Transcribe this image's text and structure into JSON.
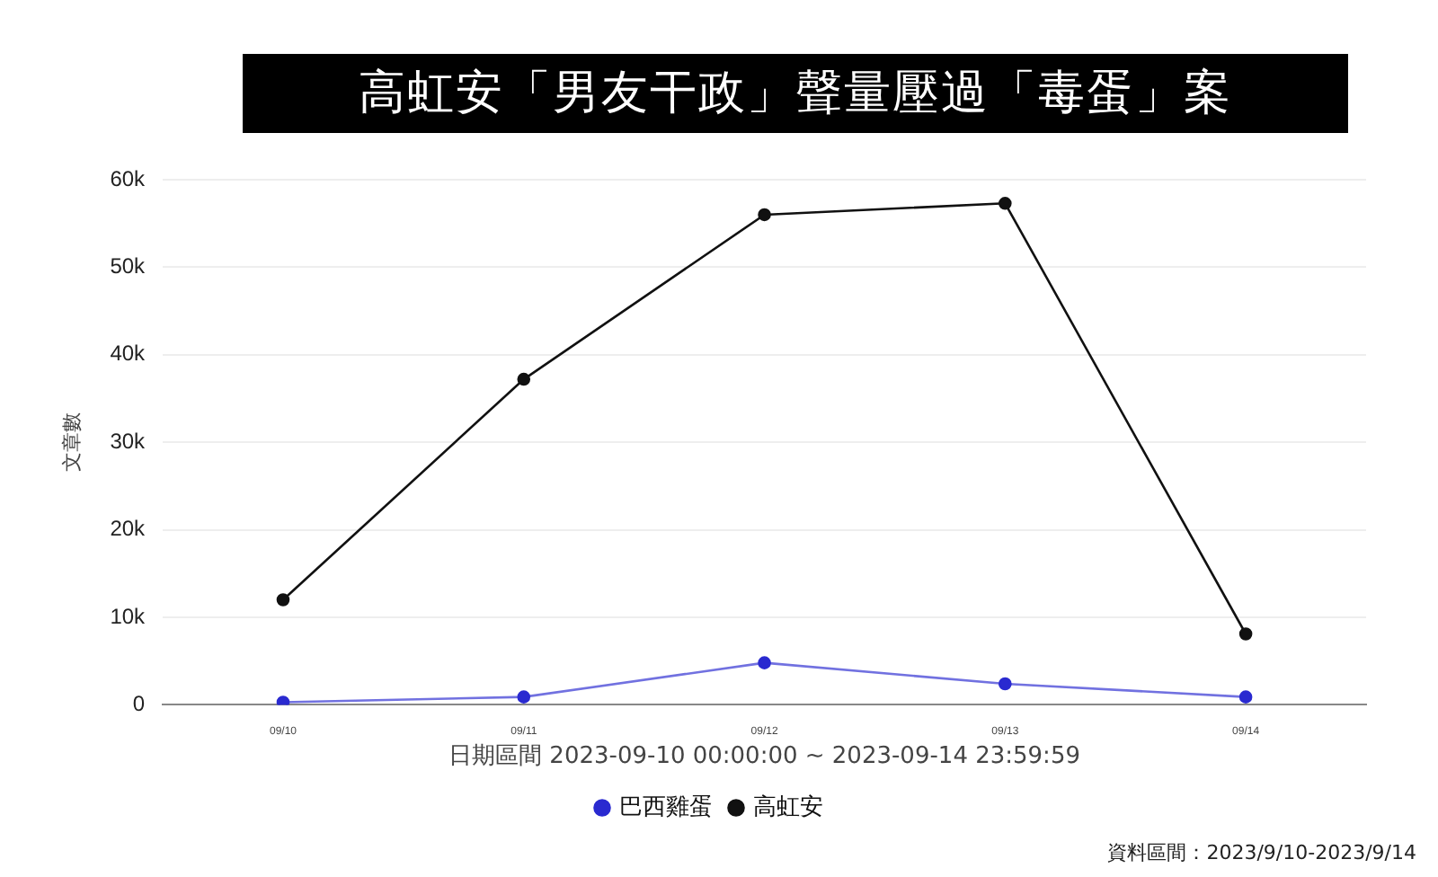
{
  "chart_data": {
    "type": "line",
    "title": "高虹安「男友干政」聲量壓過「毒蛋」案",
    "xlabel": "日期區間 2023-09-10 00:00:00 ~ 2023-09-14 23:59:59",
    "ylabel": "文章數",
    "categories": [
      "09/10",
      "09/11",
      "09/12",
      "09/13",
      "09/14"
    ],
    "series": [
      {
        "name": "巴西雞蛋",
        "color": "#2a2ad0",
        "values": [
          300,
          900,
          4800,
          2400,
          900
        ]
      },
      {
        "name": "高虹安",
        "color": "#111111",
        "values": [
          12000,
          37200,
          56000,
          57300,
          8100
        ]
      }
    ],
    "ylim": [
      0,
      60000
    ],
    "yticks": [
      0,
      {
        "value": 10000,
        "label": "10k"
      },
      {
        "value": 20000,
        "label": "20k"
      },
      {
        "value": 30000,
        "label": "30k"
      },
      {
        "value": 40000,
        "label": "40k"
      },
      {
        "value": 50000,
        "label": "50k"
      },
      {
        "value": 60000,
        "label": "60k"
      }
    ],
    "grid": "y",
    "legend": "bottom",
    "marker": "circle",
    "line_style": "solid",
    "annotations": [
      "資料區間：2023/9/10-2023/9/14"
    ]
  }
}
